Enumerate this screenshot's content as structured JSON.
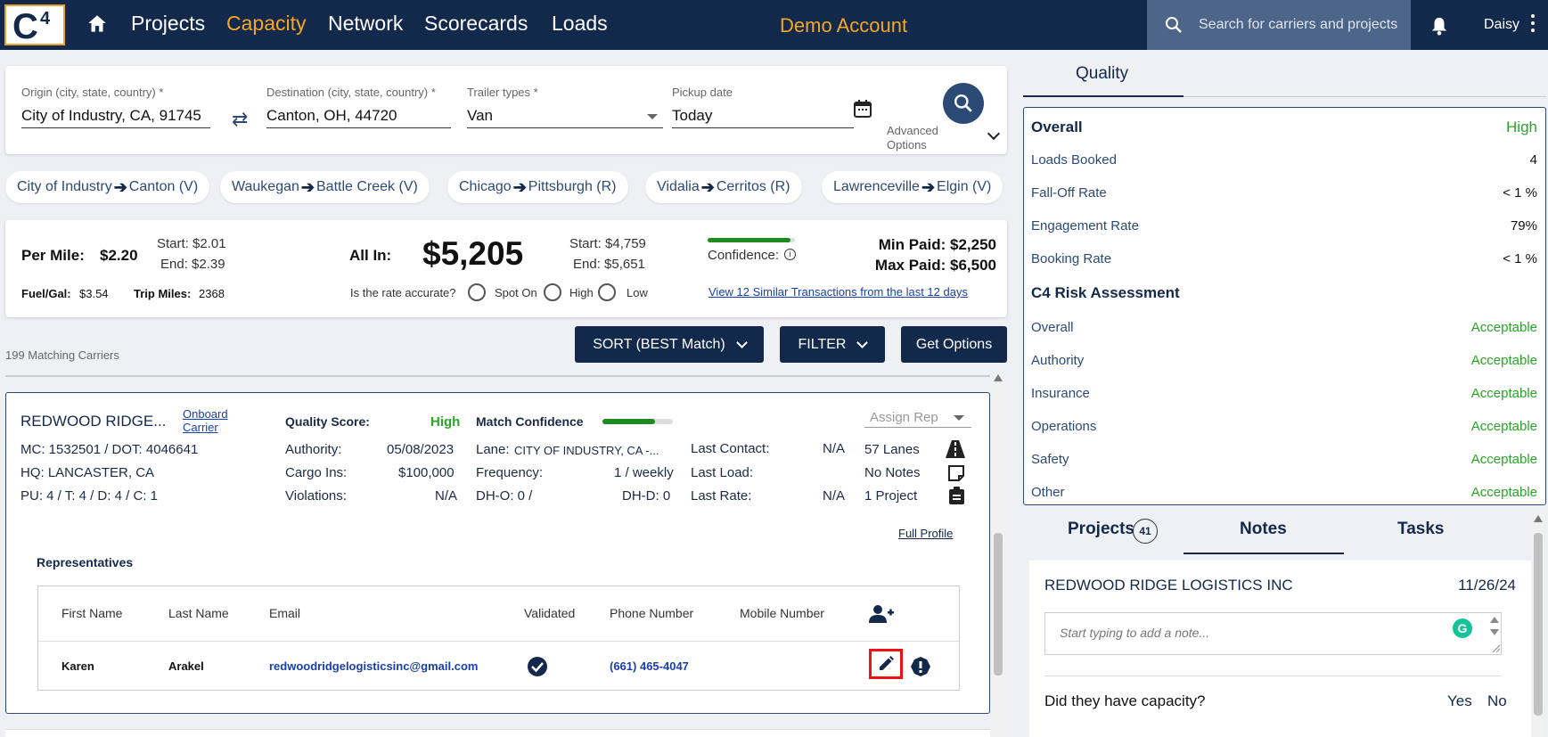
{
  "nav": {
    "logo_letter": "C",
    "logo_sup": "4",
    "items": [
      "Projects",
      "Capacity",
      "Network",
      "Scorecards",
      "Loads"
    ],
    "active": "Capacity",
    "account": "Demo Account",
    "search_placeholder": "Search for carriers and projects",
    "user": "Daisy"
  },
  "search": {
    "origin_label": "Origin (city, state, country) *",
    "origin_value": "City of Industry, CA, 91745",
    "destination_label": "Destination (city, state, country) *",
    "destination_value": "Canton, OH, 44720",
    "trailer_label": "Trailer types *",
    "trailer_value": "Van",
    "pickup_label": "Pickup date",
    "pickup_value": "Today",
    "advanced_line1": "Advanced",
    "advanced_line2": "Options"
  },
  "recent_lanes": [
    {
      "from": "City of Industry",
      "to": "Canton (V)"
    },
    {
      "from": "Waukegan",
      "to": "Battle Creek (V)"
    },
    {
      "from": "Chicago",
      "to": "Pittsburgh (R)"
    },
    {
      "from": "Vidalia",
      "to": "Cerritos (R)"
    },
    {
      "from": "Lawrenceville",
      "to": "Elgin (V)"
    }
  ],
  "rate": {
    "per_mile_label": "Per Mile:",
    "per_mile_value": "$2.20",
    "pm_start": "Start: $2.01",
    "pm_end": "End: $2.39",
    "fuel_label": "Fuel/Gal:",
    "fuel_value": "$3.54",
    "trip_label": "Trip Miles:",
    "trip_value": "2368",
    "allin_label": "All In:",
    "allin_value": "$5,205",
    "ai_start": "Start: $4,759",
    "ai_end": "End: $5,651",
    "accurate_q": "Is the rate accurate?",
    "opt_spot": "Spot On",
    "opt_high": "High",
    "opt_low": "Low",
    "confidence_label": "Confidence:",
    "confidence_level": 0.95,
    "min_paid": "Min Paid: $2,250",
    "max_paid": "Max Paid: $6,500",
    "similar_link": "View 12 Similar Transactions from the last 12 days"
  },
  "results": {
    "count": "199 Matching Carriers",
    "sort_label": "SORT (BEST Match)",
    "filter_label": "FILTER",
    "options_label": "Get Options"
  },
  "carrier": {
    "name": "REDWOOD RIDGE...",
    "onboard_line1": "Onboard",
    "onboard_line2": "Carrier",
    "mc_dot": "MC: 1532501 / DOT: 4046641",
    "hq": "HQ: LANCASTER, CA",
    "pu": "PU: 4 / T: 4 / D: 4 / C: 1",
    "quality_label": "Quality Score:",
    "quality_value": "High",
    "authority_label": "Authority:",
    "authority_value": "05/08/2023",
    "cargo_label": "Cargo Ins:",
    "cargo_value": "$100,000",
    "violations_label": "Violations:",
    "violations_value": "N/A",
    "match_label": "Match Confidence",
    "match_level": 0.75,
    "lane_label": "Lane:",
    "lane_value": "CITY OF INDUSTRY, CA -...",
    "frequency_label": "Frequency:",
    "frequency_value": "1 / weekly",
    "dho": "DH-O: 0  /",
    "dhd": "DH-D: 0",
    "last_contact_label": "Last Contact:",
    "last_contact_value": "N/A",
    "last_load_label": "Last Load:",
    "last_rate_label": "Last Rate:",
    "last_rate_value": "N/A",
    "assign_rep": "Assign Rep",
    "lanes": "57 Lanes",
    "notes": "No Notes",
    "projects": "1 Project",
    "full_profile": "Full Profile",
    "reps_title": "Representatives",
    "reps_headers": [
      "First Name",
      "Last Name",
      "Email",
      "Validated",
      "Phone Number",
      "Mobile Number"
    ],
    "rep": {
      "first": "Karen",
      "last": "Arakel",
      "email": "redwoodridgelogisticsinc@gmail.com",
      "phone": "(661) 465-4047"
    }
  },
  "quality": {
    "tab": "Quality",
    "overall_label": "Overall",
    "overall_value": "High",
    "rows": [
      {
        "label": "Loads Booked",
        "value": "4"
      },
      {
        "label": "Fall-Off Rate",
        "value": "< 1 %"
      },
      {
        "label": "Engagement Rate",
        "value": "79%"
      },
      {
        "label": "Booking Rate",
        "value": "< 1 %"
      }
    ],
    "risk_title": "C4 Risk Assessment",
    "risk_rows": [
      {
        "label": "Overall",
        "value": "Acceptable"
      },
      {
        "label": "Authority",
        "value": "Acceptable"
      },
      {
        "label": "Insurance",
        "value": "Acceptable"
      },
      {
        "label": "Operations",
        "value": "Acceptable"
      },
      {
        "label": "Safety",
        "value": "Acceptable"
      },
      {
        "label": "Other",
        "value": "Acceptable"
      }
    ]
  },
  "notes": {
    "tabs": {
      "projects": "Projects",
      "projects_count": "41",
      "notes": "Notes",
      "tasks": "Tasks"
    },
    "company": "REDWOOD RIDGE LOGISTICS INC",
    "date": "11/26/24",
    "placeholder": "Start typing to add a note...",
    "question": "Did they have capacity?",
    "yes": "Yes",
    "no": "No"
  },
  "colors": {
    "navy": "#13294b",
    "accent": "#f5a623",
    "green": "#2aa52a",
    "highlight": "#e11111"
  }
}
